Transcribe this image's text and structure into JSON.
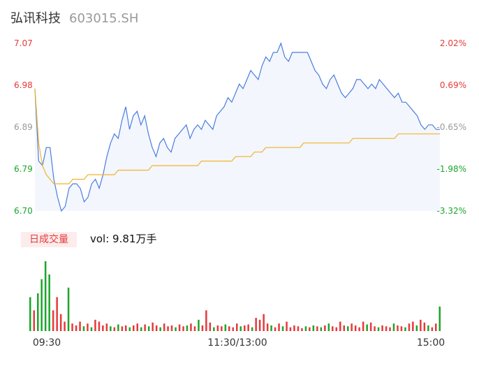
{
  "header": {
    "name": "弘讯科技",
    "code": "603015.SH"
  },
  "volume_panel": {
    "label": "日成交量",
    "value": "vol: 9.81万手"
  },
  "colors": {
    "up": "#e6393a",
    "down": "#1aa52a",
    "neutral": "#999999",
    "price_line": "#4a7de0",
    "avg_line": "#f0b429",
    "area": "#f3f6fd"
  },
  "chart_data": {
    "type": "line",
    "price_axis": {
      "ticks": [
        "7.07",
        "6.98",
        "6.89",
        "6.79",
        "6.70"
      ],
      "min": 6.7,
      "max": 7.07
    },
    "pct_axis": {
      "ticks": [
        "2.02%",
        "0.69%",
        "-0.65%",
        "-1.98%",
        "-3.32%"
      ]
    },
    "x_ticks": [
      "09:30",
      "11:30/13:00",
      "15:00"
    ],
    "price_series": [
      [
        0,
        6.97
      ],
      [
        1,
        6.81
      ],
      [
        2,
        6.8
      ],
      [
        3,
        6.84
      ],
      [
        4,
        6.84
      ],
      [
        5,
        6.77
      ],
      [
        6,
        6.73
      ],
      [
        7,
        6.7
      ],
      [
        8,
        6.71
      ],
      [
        9,
        6.75
      ],
      [
        10,
        6.76
      ],
      [
        11,
        6.76
      ],
      [
        12,
        6.75
      ],
      [
        13,
        6.72
      ],
      [
        14,
        6.73
      ],
      [
        15,
        6.76
      ],
      [
        16,
        6.77
      ],
      [
        17,
        6.75
      ],
      [
        18,
        6.78
      ],
      [
        19,
        6.82
      ],
      [
        20,
        6.85
      ],
      [
        21,
        6.87
      ],
      [
        22,
        6.86
      ],
      [
        23,
        6.9
      ],
      [
        24,
        6.93
      ],
      [
        25,
        6.88
      ],
      [
        26,
        6.91
      ],
      [
        27,
        6.92
      ],
      [
        28,
        6.89
      ],
      [
        29,
        6.91
      ],
      [
        30,
        6.87
      ],
      [
        31,
        6.84
      ],
      [
        32,
        6.82
      ],
      [
        33,
        6.85
      ],
      [
        34,
        6.86
      ],
      [
        35,
        6.84
      ],
      [
        36,
        6.83
      ],
      [
        37,
        6.86
      ],
      [
        38,
        6.87
      ],
      [
        39,
        6.88
      ],
      [
        40,
        6.89
      ],
      [
        41,
        6.86
      ],
      [
        42,
        6.88
      ],
      [
        43,
        6.89
      ],
      [
        44,
        6.88
      ],
      [
        45,
        6.9
      ],
      [
        46,
        6.89
      ],
      [
        47,
        6.88
      ],
      [
        48,
        6.91
      ],
      [
        49,
        6.92
      ],
      [
        50,
        6.93
      ],
      [
        51,
        6.95
      ],
      [
        52,
        6.94
      ],
      [
        53,
        6.96
      ],
      [
        54,
        6.98
      ],
      [
        55,
        6.97
      ],
      [
        56,
        6.99
      ],
      [
        57,
        7.01
      ],
      [
        58,
        7.0
      ],
      [
        59,
        6.99
      ],
      [
        60,
        7.02
      ],
      [
        61,
        7.04
      ],
      [
        62,
        7.03
      ],
      [
        63,
        7.05
      ],
      [
        64,
        7.05
      ],
      [
        65,
        7.07
      ],
      [
        66,
        7.04
      ],
      [
        67,
        7.03
      ],
      [
        68,
        7.05
      ],
      [
        69,
        7.05
      ],
      [
        70,
        7.05
      ],
      [
        71,
        7.05
      ],
      [
        72,
        7.05
      ],
      [
        73,
        7.03
      ],
      [
        74,
        7.01
      ],
      [
        75,
        7.0
      ],
      [
        76,
        6.98
      ],
      [
        77,
        6.97
      ],
      [
        78,
        6.99
      ],
      [
        79,
        7.0
      ],
      [
        80,
        6.98
      ],
      [
        81,
        6.96
      ],
      [
        82,
        6.95
      ],
      [
        83,
        6.96
      ],
      [
        84,
        6.97
      ],
      [
        85,
        6.99
      ],
      [
        86,
        6.99
      ],
      [
        87,
        6.98
      ],
      [
        88,
        6.97
      ],
      [
        89,
        6.98
      ],
      [
        90,
        6.97
      ],
      [
        91,
        6.99
      ],
      [
        92,
        6.98
      ],
      [
        93,
        6.97
      ],
      [
        94,
        6.96
      ],
      [
        95,
        6.95
      ],
      [
        96,
        6.96
      ],
      [
        97,
        6.94
      ],
      [
        98,
        6.94
      ],
      [
        99,
        6.93
      ],
      [
        100,
        6.92
      ],
      [
        101,
        6.91
      ],
      [
        102,
        6.89
      ],
      [
        103,
        6.88
      ],
      [
        104,
        6.89
      ],
      [
        105,
        6.89
      ],
      [
        106,
        6.88
      ],
      [
        107,
        6.88
      ]
    ],
    "avg_series": [
      [
        0,
        6.97
      ],
      [
        1,
        6.85
      ],
      [
        2,
        6.8
      ],
      [
        3,
        6.78
      ],
      [
        4,
        6.77
      ],
      [
        5,
        6.76
      ],
      [
        6,
        6.76
      ],
      [
        7,
        6.76
      ],
      [
        8,
        6.76
      ],
      [
        9,
        6.76
      ],
      [
        10,
        6.77
      ],
      [
        11,
        6.77
      ],
      [
        12,
        6.77
      ],
      [
        13,
        6.77
      ],
      [
        14,
        6.78
      ],
      [
        15,
        6.78
      ],
      [
        16,
        6.78
      ],
      [
        17,
        6.78
      ],
      [
        18,
        6.78
      ],
      [
        19,
        6.78
      ],
      [
        20,
        6.78
      ],
      [
        21,
        6.78
      ],
      [
        22,
        6.79
      ],
      [
        23,
        6.79
      ],
      [
        24,
        6.79
      ],
      [
        25,
        6.79
      ],
      [
        26,
        6.79
      ],
      [
        27,
        6.79
      ],
      [
        28,
        6.79
      ],
      [
        29,
        6.79
      ],
      [
        30,
        6.79
      ],
      [
        31,
        6.8
      ],
      [
        32,
        6.8
      ],
      [
        33,
        6.8
      ],
      [
        34,
        6.8
      ],
      [
        35,
        6.8
      ],
      [
        36,
        6.8
      ],
      [
        37,
        6.8
      ],
      [
        38,
        6.8
      ],
      [
        39,
        6.8
      ],
      [
        40,
        6.8
      ],
      [
        41,
        6.8
      ],
      [
        42,
        6.8
      ],
      [
        43,
        6.8
      ],
      [
        44,
        6.81
      ],
      [
        45,
        6.81
      ],
      [
        46,
        6.81
      ],
      [
        47,
        6.81
      ],
      [
        48,
        6.81
      ],
      [
        49,
        6.81
      ],
      [
        50,
        6.81
      ],
      [
        51,
        6.81
      ],
      [
        52,
        6.81
      ],
      [
        53,
        6.82
      ],
      [
        54,
        6.82
      ],
      [
        55,
        6.82
      ],
      [
        56,
        6.82
      ],
      [
        57,
        6.82
      ],
      [
        58,
        6.83
      ],
      [
        59,
        6.83
      ],
      [
        60,
        6.83
      ],
      [
        61,
        6.84
      ],
      [
        62,
        6.84
      ],
      [
        63,
        6.84
      ],
      [
        64,
        6.84
      ],
      [
        65,
        6.84
      ],
      [
        66,
        6.84
      ],
      [
        67,
        6.84
      ],
      [
        68,
        6.84
      ],
      [
        69,
        6.84
      ],
      [
        70,
        6.84
      ],
      [
        71,
        6.85
      ],
      [
        72,
        6.85
      ],
      [
        73,
        6.85
      ],
      [
        74,
        6.85
      ],
      [
        75,
        6.85
      ],
      [
        76,
        6.85
      ],
      [
        77,
        6.85
      ],
      [
        78,
        6.85
      ],
      [
        79,
        6.85
      ],
      [
        80,
        6.85
      ],
      [
        81,
        6.85
      ],
      [
        82,
        6.85
      ],
      [
        83,
        6.85
      ],
      [
        84,
        6.86
      ],
      [
        85,
        6.86
      ],
      [
        86,
        6.86
      ],
      [
        87,
        6.86
      ],
      [
        88,
        6.86
      ],
      [
        89,
        6.86
      ],
      [
        90,
        6.86
      ],
      [
        91,
        6.86
      ],
      [
        92,
        6.86
      ],
      [
        93,
        6.86
      ],
      [
        94,
        6.86
      ],
      [
        95,
        6.86
      ],
      [
        96,
        6.87
      ],
      [
        97,
        6.87
      ],
      [
        98,
        6.87
      ],
      [
        99,
        6.87
      ],
      [
        100,
        6.87
      ],
      [
        101,
        6.87
      ],
      [
        102,
        6.87
      ],
      [
        103,
        6.87
      ],
      [
        104,
        6.87
      ],
      [
        105,
        6.87
      ],
      [
        106,
        6.87
      ],
      [
        107,
        6.87
      ]
    ],
    "volume_bars": [
      [
        0,
        36,
        "d"
      ],
      [
        1,
        22,
        "u"
      ],
      [
        2,
        40,
        "d"
      ],
      [
        3,
        55,
        "d"
      ],
      [
        4,
        74,
        "d"
      ],
      [
        5,
        60,
        "d"
      ],
      [
        6,
        22,
        "u"
      ],
      [
        7,
        36,
        "u"
      ],
      [
        8,
        18,
        "u"
      ],
      [
        9,
        10,
        "u"
      ],
      [
        10,
        46,
        "d"
      ],
      [
        11,
        8,
        "u"
      ],
      [
        12,
        6,
        "u"
      ],
      [
        13,
        10,
        "u"
      ],
      [
        14,
        5,
        "d"
      ],
      [
        15,
        8,
        "u"
      ],
      [
        16,
        4,
        "d"
      ],
      [
        17,
        12,
        "u"
      ],
      [
        18,
        10,
        "u"
      ],
      [
        19,
        6,
        "u"
      ],
      [
        20,
        8,
        "u"
      ],
      [
        21,
        5,
        "d"
      ],
      [
        22,
        4,
        "u"
      ],
      [
        23,
        7,
        "d"
      ],
      [
        24,
        5,
        "u"
      ],
      [
        25,
        6,
        "u"
      ],
      [
        26,
        4,
        "d"
      ],
      [
        27,
        6,
        "u"
      ],
      [
        28,
        8,
        "u"
      ],
      [
        29,
        4,
        "d"
      ],
      [
        30,
        7,
        "u"
      ],
      [
        31,
        5,
        "d"
      ],
      [
        32,
        9,
        "u"
      ],
      [
        33,
        6,
        "u"
      ],
      [
        34,
        4,
        "d"
      ],
      [
        35,
        8,
        "u"
      ],
      [
        36,
        5,
        "u"
      ],
      [
        37,
        6,
        "u"
      ],
      [
        38,
        4,
        "d"
      ],
      [
        39,
        7,
        "u"
      ],
      [
        40,
        5,
        "u"
      ],
      [
        41,
        6,
        "d"
      ],
      [
        42,
        8,
        "u"
      ],
      [
        43,
        5,
        "u"
      ],
      [
        44,
        12,
        "d"
      ],
      [
        45,
        6,
        "u"
      ],
      [
        46,
        22,
        "u"
      ],
      [
        47,
        9,
        "u"
      ],
      [
        48,
        4,
        "d"
      ],
      [
        49,
        6,
        "u"
      ],
      [
        50,
        5,
        "u"
      ],
      [
        51,
        7,
        "d"
      ],
      [
        52,
        5,
        "u"
      ],
      [
        53,
        4,
        "u"
      ],
      [
        54,
        8,
        "u"
      ],
      [
        55,
        5,
        "d"
      ],
      [
        56,
        6,
        "u"
      ],
      [
        57,
        7,
        "u"
      ],
      [
        58,
        4,
        "d"
      ],
      [
        59,
        14,
        "u"
      ],
      [
        60,
        12,
        "u"
      ],
      [
        61,
        18,
        "u"
      ],
      [
        62,
        8,
        "u"
      ],
      [
        63,
        6,
        "d"
      ],
      [
        64,
        4,
        "u"
      ],
      [
        65,
        8,
        "u"
      ],
      [
        66,
        5,
        "d"
      ],
      [
        67,
        10,
        "u"
      ],
      [
        68,
        4,
        "u"
      ],
      [
        69,
        6,
        "u"
      ],
      [
        70,
        5,
        "u"
      ],
      [
        71,
        3,
        "u"
      ],
      [
        72,
        5,
        "d"
      ],
      [
        73,
        4,
        "u"
      ],
      [
        74,
        6,
        "d"
      ],
      [
        75,
        5,
        "u"
      ],
      [
        76,
        4,
        "d"
      ],
      [
        77,
        6,
        "u"
      ],
      [
        78,
        8,
        "d"
      ],
      [
        79,
        5,
        "u"
      ],
      [
        80,
        4,
        "u"
      ],
      [
        81,
        10,
        "u"
      ],
      [
        82,
        6,
        "u"
      ],
      [
        83,
        5,
        "d"
      ],
      [
        84,
        8,
        "u"
      ],
      [
        85,
        6,
        "u"
      ],
      [
        86,
        4,
        "u"
      ],
      [
        87,
        10,
        "u"
      ],
      [
        88,
        7,
        "d"
      ],
      [
        89,
        9,
        "u"
      ],
      [
        90,
        5,
        "u"
      ],
      [
        91,
        4,
        "d"
      ],
      [
        92,
        6,
        "u"
      ],
      [
        93,
        5,
        "u"
      ],
      [
        94,
        4,
        "u"
      ],
      [
        95,
        8,
        "d"
      ],
      [
        96,
        6,
        "u"
      ],
      [
        97,
        5,
        "u"
      ],
      [
        98,
        4,
        "d"
      ],
      [
        99,
        8,
        "u"
      ],
      [
        100,
        10,
        "u"
      ],
      [
        101,
        6,
        "d"
      ],
      [
        102,
        12,
        "u"
      ],
      [
        103,
        9,
        "u"
      ],
      [
        104,
        6,
        "d"
      ],
      [
        105,
        4,
        "u"
      ],
      [
        106,
        8,
        "u"
      ],
      [
        107,
        26,
        "d"
      ]
    ]
  }
}
